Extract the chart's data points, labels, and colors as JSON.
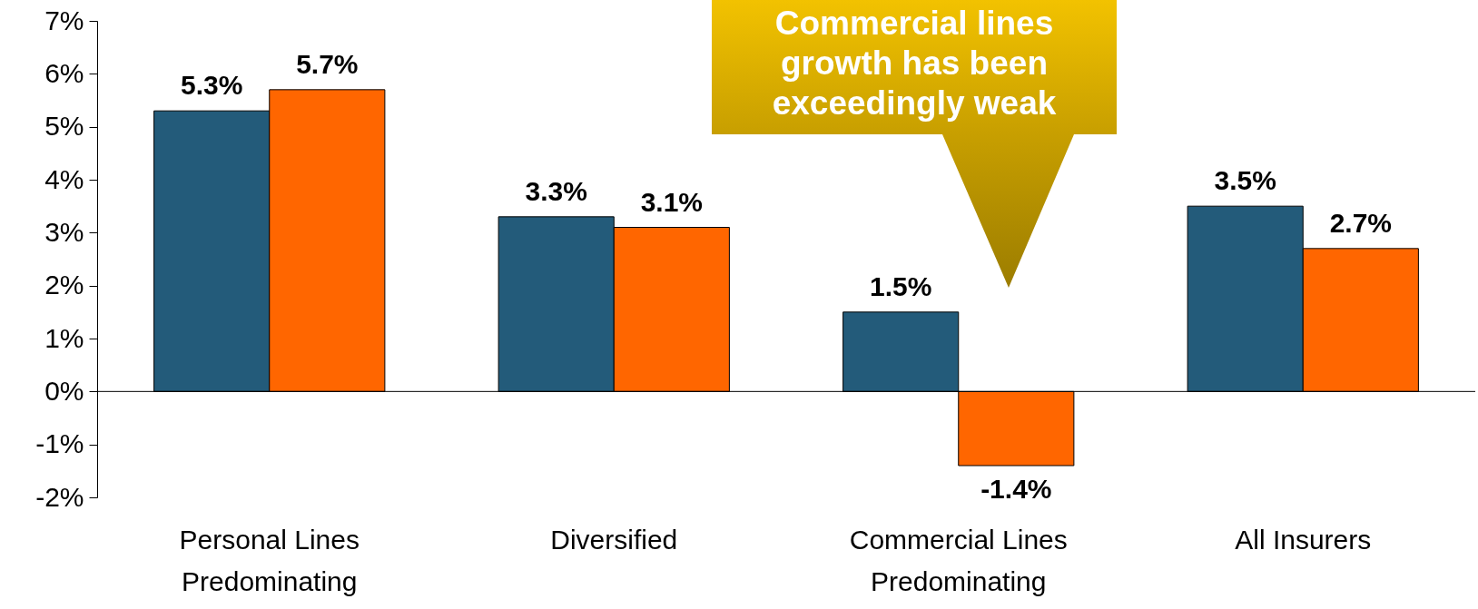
{
  "chart_data": {
    "type": "bar",
    "categories": [
      "Personal Lines Predominating",
      "Diversified",
      "Commercial Lines Predominating",
      "All Insurers"
    ],
    "series": [
      {
        "color": "#235b7a",
        "values": [
          5.3,
          3.3,
          1.5,
          3.5
        ],
        "value_labels": [
          "5.3%",
          "3.3%",
          "1.5%",
          "3.5%"
        ]
      },
      {
        "color": "#ff6600",
        "values": [
          5.7,
          3.1,
          -1.4,
          2.7
        ],
        "value_labels": [
          "5.7%",
          "3.1%",
          "-1.4%",
          "2.7%"
        ]
      }
    ],
    "ylim": [
      -2,
      7
    ],
    "yticks": [
      {
        "value": -2,
        "label": "-2%"
      },
      {
        "value": -1,
        "label": "-1%"
      },
      {
        "value": 0,
        "label": "0%"
      },
      {
        "value": 1,
        "label": "1%"
      },
      {
        "value": 2,
        "label": "2%"
      },
      {
        "value": 3,
        "label": "3%"
      },
      {
        "value": 4,
        "label": "4%"
      },
      {
        "value": 5,
        "label": "5%"
      },
      {
        "value": 6,
        "label": "6%"
      },
      {
        "value": 7,
        "label": "7%"
      }
    ],
    "annotations": [
      "Commercial lines growth has been exceedingly weak"
    ]
  }
}
